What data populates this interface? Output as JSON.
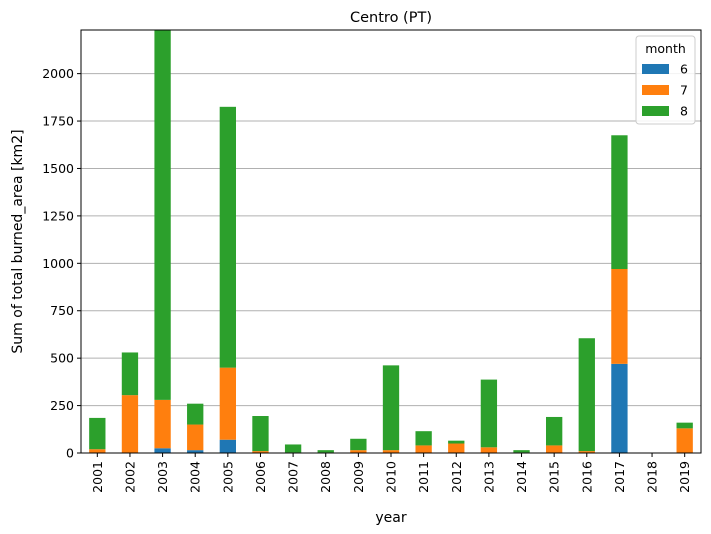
{
  "chart_data": {
    "type": "bar",
    "stacked": true,
    "title": "Centro (PT)",
    "xlabel": "year",
    "ylabel": "Sum of total burned_area [km2]",
    "ylim": [
      0,
      2230
    ],
    "yticks": [
      0,
      250,
      500,
      750,
      1000,
      1250,
      1500,
      1750,
      2000
    ],
    "grid": "y",
    "categories": [
      "2001",
      "2002",
      "2003",
      "2004",
      "2005",
      "2006",
      "2007",
      "2008",
      "2009",
      "2010",
      "2011",
      "2012",
      "2013",
      "2014",
      "2015",
      "2016",
      "2017",
      "2018",
      "2019"
    ],
    "series": [
      {
        "name": "6",
        "color": "#1f77b4",
        "values": [
          0,
          0,
          25,
          15,
          70,
          0,
          0,
          0,
          0,
          0,
          0,
          0,
          0,
          0,
          0,
          0,
          470,
          0,
          0
        ]
      },
      {
        "name": "7",
        "color": "#ff7f0e",
        "values": [
          20,
          305,
          255,
          135,
          380,
          10,
          3,
          3,
          15,
          15,
          40,
          50,
          30,
          3,
          40,
          10,
          500,
          0,
          130
        ]
      },
      {
        "name": "8",
        "color": "#2ca02c",
        "values": [
          165,
          225,
          1950,
          110,
          1375,
          185,
          42,
          12,
          60,
          447,
          75,
          15,
          357,
          12,
          150,
          595,
          705,
          0,
          30
        ]
      }
    ],
    "legend": {
      "title": "month",
      "position": "top-right"
    }
  }
}
